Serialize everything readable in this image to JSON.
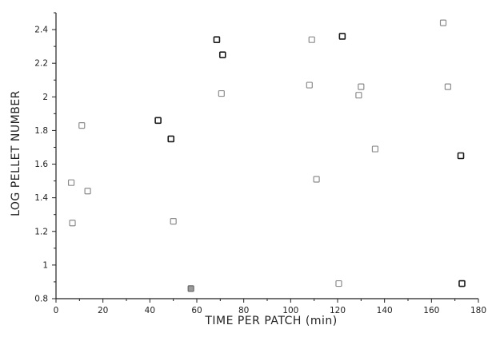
{
  "chart_data": {
    "type": "scatter",
    "title": "",
    "xlabel": "TIME PER PATCH  (min)",
    "ylabel": "LOG PELLET NUMBER",
    "xlim": [
      0,
      180
    ],
    "ylim": [
      0.8,
      2.5
    ],
    "xticks": [
      0,
      20,
      40,
      60,
      80,
      100,
      120,
      140,
      160,
      180
    ],
    "yticks": [
      0.8,
      1,
      1.2,
      1.4,
      1.6,
      1.8,
      2,
      2.2,
      2.4
    ],
    "ytick_labels": [
      "0.8",
      "1",
      "1.2",
      "1.4",
      "1.6",
      "1.8",
      "2",
      "2.2",
      "2.4"
    ],
    "grid": false,
    "legend": "none",
    "marker": "square",
    "points": [
      {
        "x": 6.5,
        "y": 1.49,
        "style": "light"
      },
      {
        "x": 7,
        "y": 1.25,
        "style": "light"
      },
      {
        "x": 11,
        "y": 1.83,
        "style": "light"
      },
      {
        "x": 13.5,
        "y": 1.44,
        "style": "light"
      },
      {
        "x": 43.5,
        "y": 1.86,
        "style": "dark"
      },
      {
        "x": 49,
        "y": 1.75,
        "style": "dark"
      },
      {
        "x": 50,
        "y": 1.26,
        "style": "light"
      },
      {
        "x": 57.5,
        "y": 0.86,
        "style": "filled"
      },
      {
        "x": 68.5,
        "y": 2.34,
        "style": "dark"
      },
      {
        "x": 70.5,
        "y": 2.02,
        "style": "light"
      },
      {
        "x": 71,
        "y": 2.25,
        "style": "dark"
      },
      {
        "x": 108,
        "y": 2.07,
        "style": "light"
      },
      {
        "x": 109,
        "y": 2.34,
        "style": "light"
      },
      {
        "x": 111,
        "y": 1.51,
        "style": "light"
      },
      {
        "x": 120.5,
        "y": 0.89,
        "style": "light"
      },
      {
        "x": 122,
        "y": 2.36,
        "style": "dark"
      },
      {
        "x": 129,
        "y": 2.01,
        "style": "light"
      },
      {
        "x": 130,
        "y": 2.06,
        "style": "light"
      },
      {
        "x": 136,
        "y": 1.69,
        "style": "light"
      },
      {
        "x": 165,
        "y": 2.44,
        "style": "light"
      },
      {
        "x": 167,
        "y": 2.06,
        "style": "light"
      },
      {
        "x": 172.5,
        "y": 1.65,
        "style": "dark"
      },
      {
        "x": 173,
        "y": 0.89,
        "style": "dark"
      }
    ]
  }
}
